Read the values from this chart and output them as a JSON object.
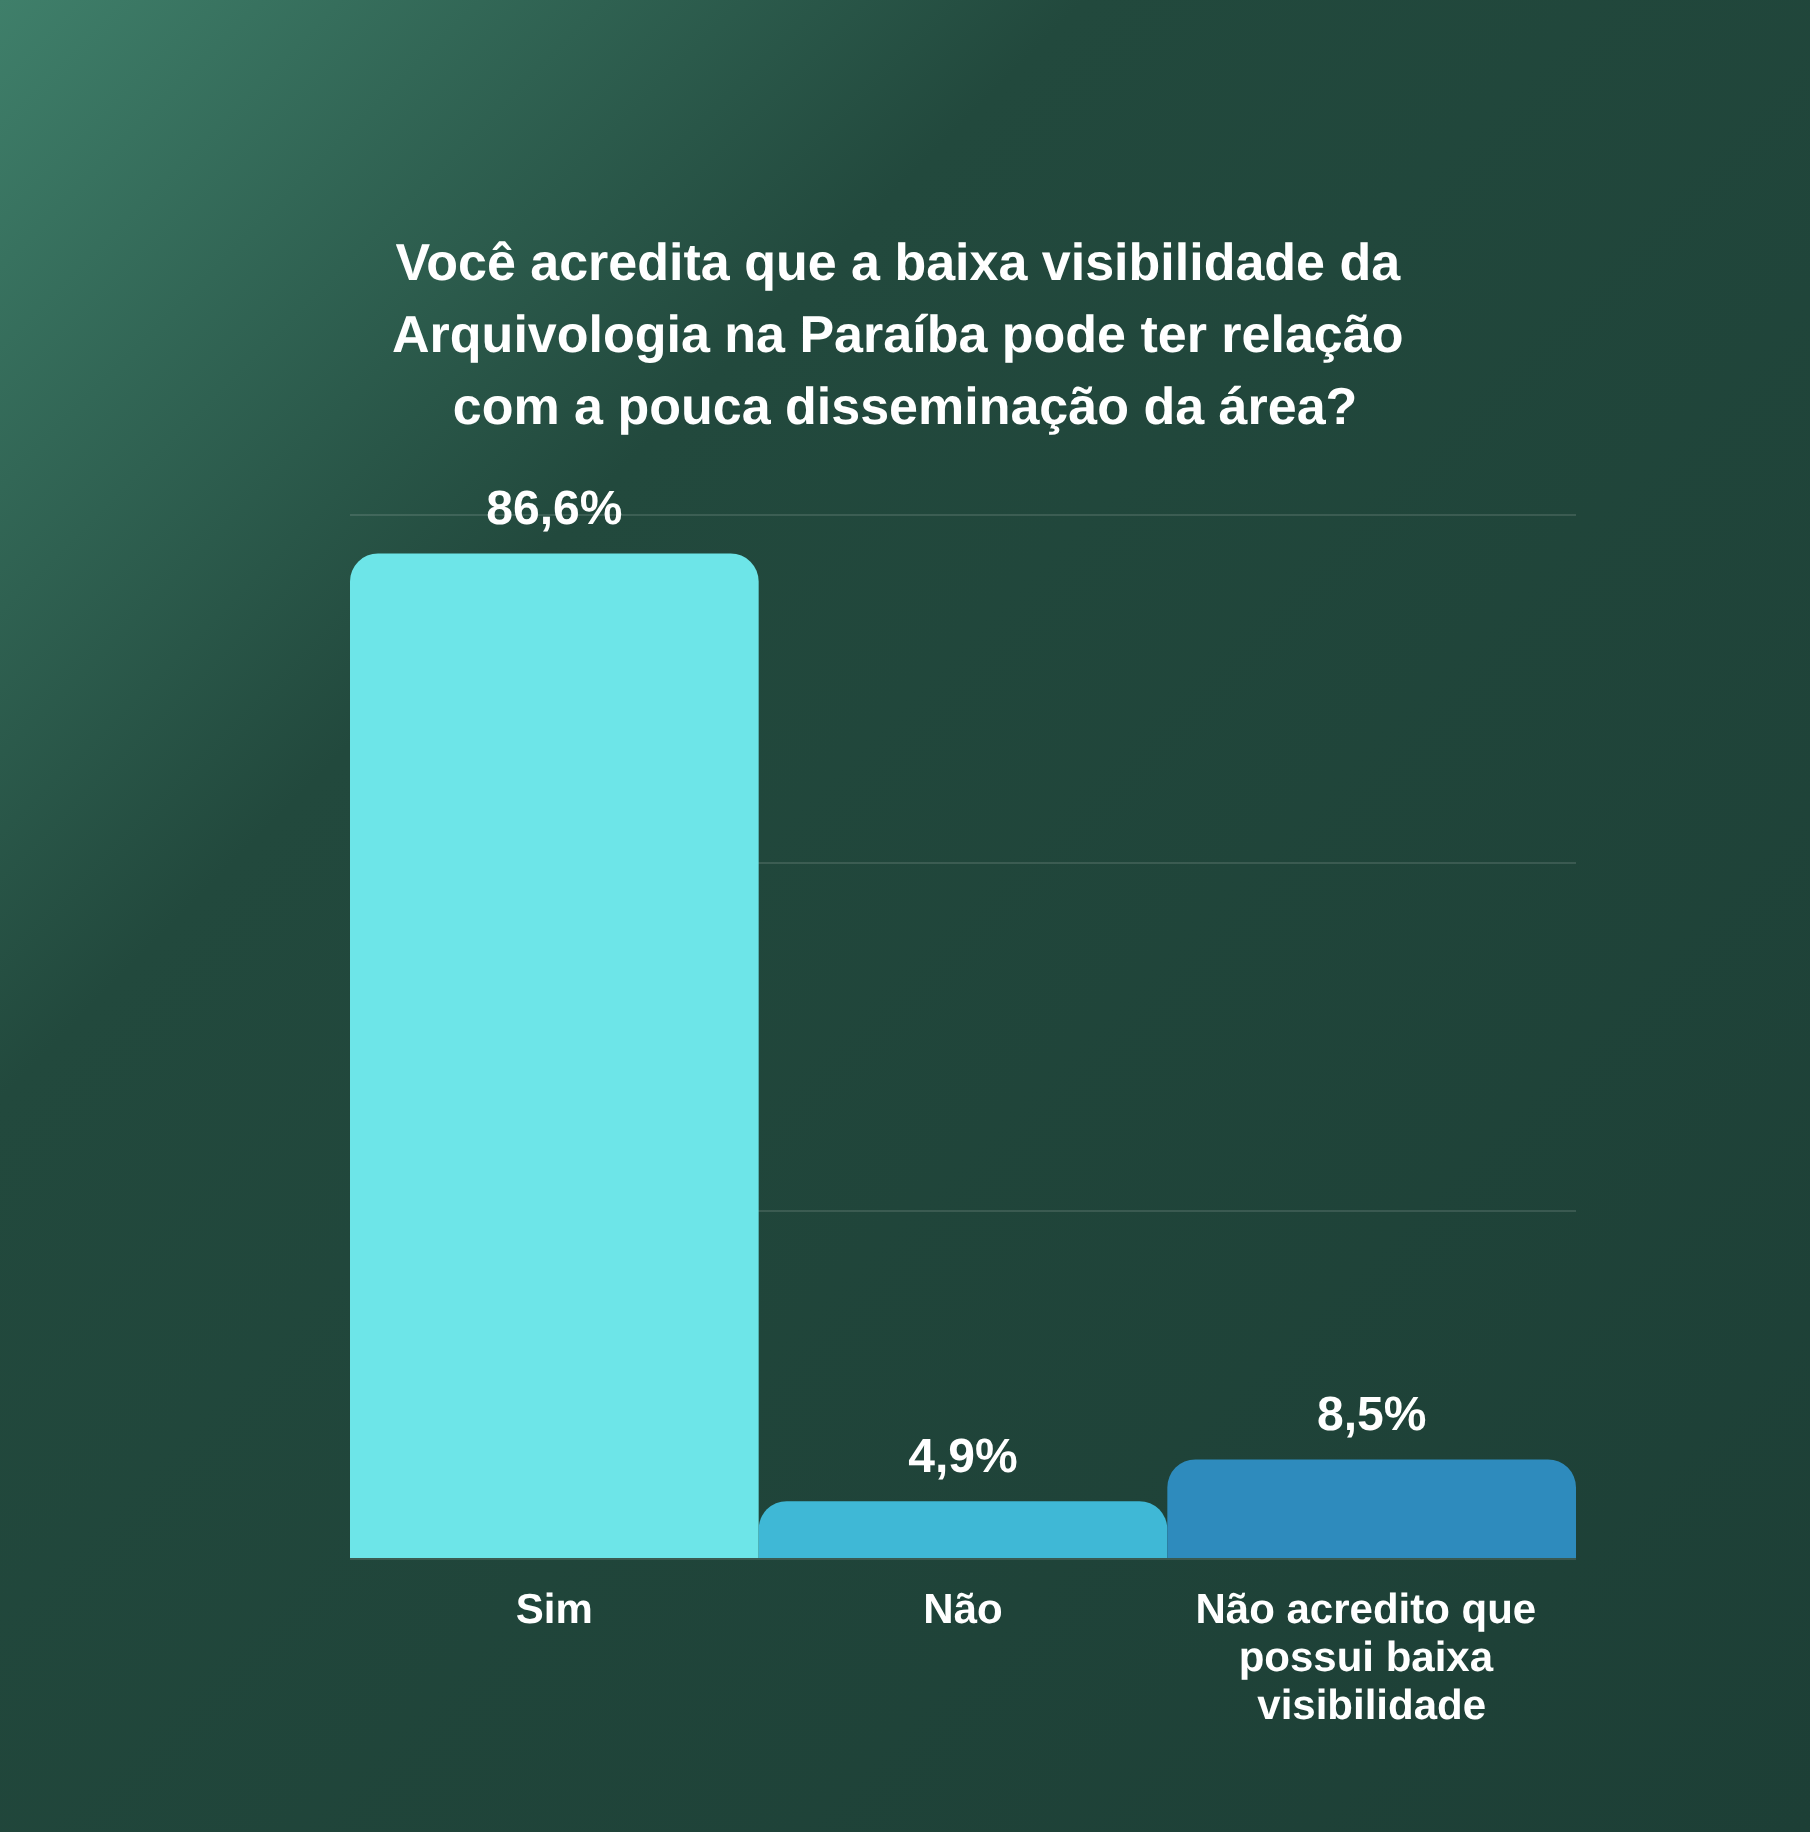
{
  "chart_data": {
    "type": "bar",
    "title": "Você acredita que a baixa visibilidade da Arquivologia na Paraíba pode ter relação com a pouca disseminação da área?",
    "categories": [
      "Sim",
      "Não",
      "Não acredito que possui baixa visibilidade"
    ],
    "values": [
      86.6,
      4.9,
      8.5
    ],
    "colors": [
      "#6de5e8",
      "#3fb8d6",
      "#2e8bbd"
    ],
    "value_labels": [
      "86,6%",
      "4,9%",
      "8,5%"
    ],
    "ylim": [
      0,
      90
    ],
    "yticks": [
      {
        "value": 0,
        "label": null
      },
      {
        "value": 30,
        "label": null
      },
      {
        "value": 60,
        "label": null
      },
      {
        "value": 90,
        "label": null
      }
    ],
    "grid": "y",
    "tick_labels": "x"
  }
}
